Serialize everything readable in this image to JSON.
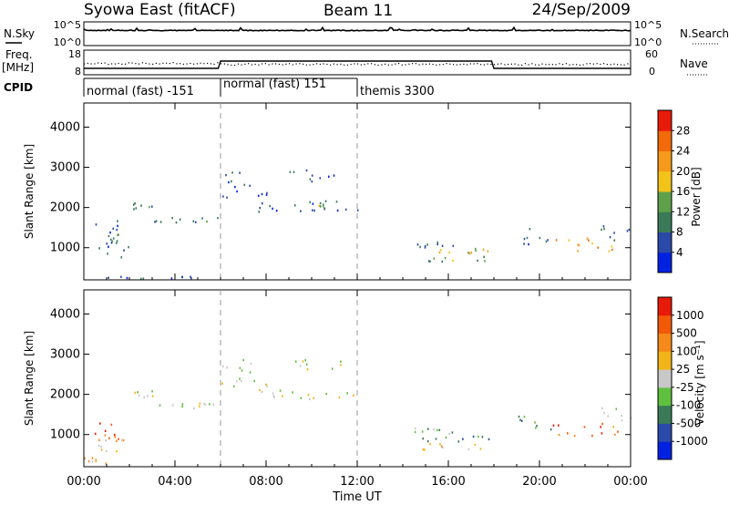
{
  "header": {
    "title_left": "Syowa East (fitACF)",
    "title_center": "Beam 11",
    "title_right": "24/Sep/2009"
  },
  "noise_panel": {
    "label_left": "N.Sky",
    "tick_hi_left": "10^5",
    "tick_lo_left": "10^0",
    "tick_hi_right": "10^5",
    "tick_lo_right": "10^0",
    "label_right": "N.Search"
  },
  "freq_panel": {
    "label_top": "Freq.",
    "label_unit": "[MHz]",
    "tick_hi_left": "18",
    "tick_lo_left": "8",
    "tick_hi_right": "60",
    "tick_lo_right": "0",
    "label_right": "Nave"
  },
  "cpid_panel": {
    "label": "CPID",
    "modes": [
      {
        "label": "normal (fast) -151",
        "start_hour": 0,
        "end_hour": 6
      },
      {
        "label": "normal (fast) 151",
        "start_hour": 6,
        "end_hour": 12
      },
      {
        "label": "themis 3300",
        "start_hour": 12,
        "end_hour": 24
      }
    ]
  },
  "chart_data": [
    {
      "type": "heatmap",
      "name": "power",
      "ylabel": "Slant Range [km]",
      "ylim": [
        200,
        4600
      ],
      "yticks": [
        "1000",
        "2000",
        "3000",
        "4000"
      ],
      "colorbar_label": "Power [dB]",
      "colorbar_ticks": [
        "4",
        "8",
        "12",
        "16",
        "20",
        "24",
        "28"
      ],
      "colorbar_colors": [
        "#0022e0",
        "#2a4aa8",
        "#3b7a58",
        "#5fa04a",
        "#f2c41a",
        "#f59a1a",
        "#f26a0a",
        "#e81a0a"
      ],
      "clusters": [
        {
          "t0": 0.1,
          "t1": 5.9,
          "r0": 250,
          "r1": 320,
          "c": 1,
          "d": 0.55
        },
        {
          "t0": 0.3,
          "t1": 1.5,
          "r0": 650,
          "r1": 1700,
          "c": 1,
          "d": 0.22
        },
        {
          "t0": 0.8,
          "t1": 2.2,
          "r0": 750,
          "r1": 1350,
          "c": 2,
          "d": 0.3
        },
        {
          "t0": 2.0,
          "t1": 3.0,
          "r0": 1950,
          "r1": 2150,
          "c": 2,
          "d": 0.45
        },
        {
          "t0": 3.0,
          "t1": 6.0,
          "r0": 1650,
          "r1": 1820,
          "c": 2,
          "d": 0.55
        },
        {
          "t0": 6.0,
          "t1": 8.2,
          "r0": 2200,
          "r1": 2900,
          "c": 1,
          "d": 0.3
        },
        {
          "t0": 7.5,
          "t1": 12.0,
          "r0": 1900,
          "r1": 2150,
          "c": 1,
          "d": 0.45
        },
        {
          "t0": 9.5,
          "t1": 12.0,
          "r0": 2000,
          "r1": 2200,
          "c": 3,
          "d": 0.2
        },
        {
          "t0": 9.0,
          "t1": 11.5,
          "r0": 2650,
          "r1": 2950,
          "c": 1,
          "d": 0.22
        },
        {
          "t0": 14.5,
          "t1": 16.3,
          "r0": 1000,
          "r1": 1200,
          "c": 2,
          "d": 0.45
        },
        {
          "t0": 14.5,
          "t1": 17.8,
          "r0": 850,
          "r1": 1000,
          "c": 4,
          "d": 0.45
        },
        {
          "t0": 14.5,
          "t1": 17.8,
          "r0": 650,
          "r1": 800,
          "c": 3,
          "d": 0.4
        },
        {
          "t0": 19.0,
          "t1": 20.5,
          "r0": 1100,
          "r1": 1500,
          "c": 1,
          "d": 0.2
        },
        {
          "t0": 20.5,
          "t1": 23.5,
          "r0": 900,
          "r1": 1300,
          "c": 5,
          "d": 0.25
        },
        {
          "t0": 22.5,
          "t1": 24.0,
          "r0": 1200,
          "r1": 1700,
          "c": 1,
          "d": 0.18
        }
      ]
    },
    {
      "type": "heatmap",
      "name": "velocity",
      "ylabel": "Slant Range [km]",
      "ylim": [
        200,
        4600
      ],
      "yticks": [
        "1000",
        "2000",
        "3000",
        "4000"
      ],
      "colorbar_label": "Velocity [m s⁻¹]",
      "colorbar_ticks": [
        "1000",
        "500",
        "100",
        "25",
        "-25",
        "-100",
        "-500",
        "-1000"
      ],
      "colorbar_colors": [
        "#0022e0",
        "#2a4aa8",
        "#3b7a58",
        "#5fc040",
        "#c8c8c8",
        "#f2b418",
        "#f58a1a",
        "#f25a0a",
        "#e81a0a"
      ],
      "clusters": [
        {
          "t0": 0.3,
          "t1": 1.5,
          "r0": 850,
          "r1": 1450,
          "c": 7,
          "d": 0.3
        },
        {
          "t0": 0.5,
          "t1": 2.3,
          "r0": 600,
          "r1": 900,
          "c": 5,
          "d": 0.3
        },
        {
          "t0": 0.0,
          "t1": 1.0,
          "r0": 300,
          "r1": 450,
          "c": 5,
          "d": 0.4
        },
        {
          "t0": 2.0,
          "t1": 3.0,
          "r0": 1950,
          "r1": 2150,
          "c": 4,
          "d": 0.45
        },
        {
          "t0": 3.0,
          "t1": 6.0,
          "r0": 1650,
          "r1": 1820,
          "c": 4,
          "d": 0.55
        },
        {
          "t0": 6.0,
          "t1": 8.2,
          "r0": 2200,
          "r1": 2900,
          "c": 4,
          "d": 0.3
        },
        {
          "t0": 7.5,
          "t1": 12.0,
          "r0": 1900,
          "r1": 2150,
          "c": 4,
          "d": 0.45
        },
        {
          "t0": 9.0,
          "t1": 11.5,
          "r0": 2650,
          "r1": 2950,
          "c": 4,
          "d": 0.22
        },
        {
          "t0": 14.5,
          "t1": 16.3,
          "r0": 1000,
          "r1": 1200,
          "c": 3,
          "d": 0.45
        },
        {
          "t0": 14.5,
          "t1": 17.8,
          "r0": 850,
          "r1": 1000,
          "c": 2,
          "d": 0.45
        },
        {
          "t0": 14.5,
          "t1": 17.8,
          "r0": 650,
          "r1": 800,
          "c": 5,
          "d": 0.4
        },
        {
          "t0": 19.0,
          "t1": 20.5,
          "r0": 1100,
          "r1": 1500,
          "c": 2,
          "d": 0.2
        },
        {
          "t0": 20.5,
          "t1": 23.5,
          "r0": 900,
          "r1": 1300,
          "c": 7,
          "d": 0.25
        },
        {
          "t0": 22.5,
          "t1": 24.0,
          "r0": 1200,
          "r1": 1700,
          "c": 4,
          "d": 0.18
        }
      ]
    }
  ],
  "xaxis": {
    "label": "Time UT",
    "ticks": [
      "00:00",
      "04:00",
      "08:00",
      "12:00",
      "16:00",
      "20:00",
      "00:00"
    ]
  }
}
